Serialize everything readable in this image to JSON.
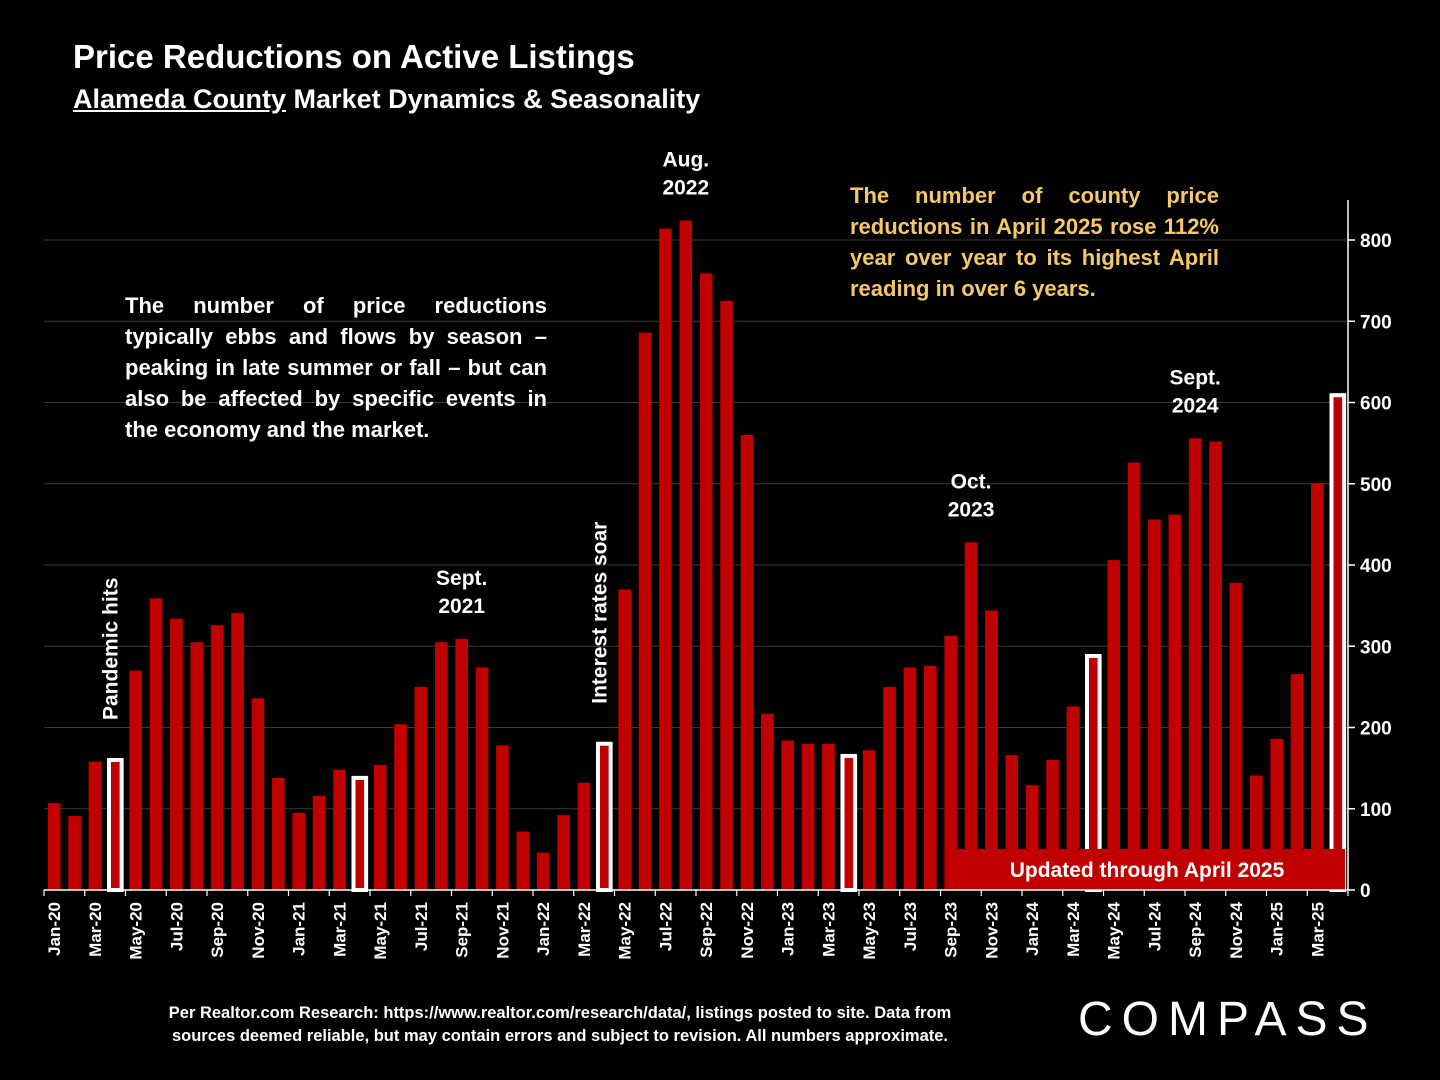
{
  "title": "Price Reductions on Active Listings",
  "subtitle_county": "Alameda County",
  "subtitle_rest": " Market Dynamics & Seasonality",
  "annotation_left": "The number of price reductions typically ebbs and flows by season – peaking in late summer or fall – but can also be affected by specific events in the economy and the market.",
  "annotation_right": "The number of county price reductions in April 2025 rose 112% year over year to its highest April reading in over 6 years.",
  "footer_line1": "Per Realtor.com Research:  https://www.realtor.com/research/data/, listings posted to site. Data from",
  "footer_line2": "sources deemed reliable, but may contain errors and subject to revision. All numbers approximate.",
  "logo": "COMPASS",
  "colors": {
    "bar": "#c00000",
    "highlight": "#ffffff",
    "banner": "#c00000",
    "annotation_right": "#f5c86b"
  },
  "chart_data": {
    "type": "bar",
    "ylim": [
      0,
      850
    ],
    "yticks": [
      0,
      100,
      200,
      300,
      400,
      500,
      600,
      700,
      800
    ],
    "y_axis_side": "right",
    "grid": true,
    "categories": [
      "Jan-20",
      "Feb-20",
      "Mar-20",
      "Apr-20",
      "May-20",
      "Jun-20",
      "Jul-20",
      "Aug-20",
      "Sep-20",
      "Oct-20",
      "Nov-20",
      "Dec-20",
      "Jan-21",
      "Feb-21",
      "Mar-21",
      "Apr-21",
      "May-21",
      "Jun-21",
      "Jul-21",
      "Aug-21",
      "Sep-21",
      "Oct-21",
      "Nov-21",
      "Dec-21",
      "Jan-22",
      "Feb-22",
      "Mar-22",
      "Apr-22",
      "May-22",
      "Jun-22",
      "Jul-22",
      "Aug-22",
      "Sep-22",
      "Oct-22",
      "Nov-22",
      "Dec-22",
      "Jan-23",
      "Feb-23",
      "Mar-23",
      "Apr-23",
      "May-23",
      "Jun-23",
      "Jul-23",
      "Aug-23",
      "Sep-23",
      "Oct-23",
      "Nov-23",
      "Dec-23",
      "Jan-24",
      "Feb-24",
      "Mar-24",
      "Apr-24",
      "May-24",
      "Jun-24",
      "Jul-24",
      "Aug-24",
      "Sep-24",
      "Oct-24",
      "Nov-24",
      "Dec-24",
      "Jan-25",
      "Feb-25",
      "Mar-25",
      "Apr-25"
    ],
    "tick_labels": [
      "Jan-20",
      "Mar-20",
      "May-20",
      "Jul-20",
      "Sep-20",
      "Nov-20",
      "Jan-21",
      "Mar-21",
      "May-21",
      "Jul-21",
      "Sep-21",
      "Nov-21",
      "Jan-22",
      "Mar-22",
      "May-22",
      "Jul-22",
      "Sep-22",
      "Nov-22",
      "Jan-23",
      "Mar-23",
      "May-23",
      "Jul-23",
      "Sep-23",
      "Nov-23",
      "Jan-24",
      "Mar-24",
      "May-24",
      "Jul-24",
      "Sep-24",
      "Nov-24",
      "Jan-25",
      "Mar-25"
    ],
    "tick_label_indices": [
      0,
      2,
      4,
      6,
      8,
      10,
      12,
      14,
      16,
      18,
      20,
      22,
      24,
      26,
      28,
      30,
      32,
      34,
      36,
      38,
      40,
      42,
      44,
      46,
      48,
      50,
      52,
      54,
      56,
      58,
      60,
      62
    ],
    "values": [
      107,
      91,
      158,
      160,
      270,
      359,
      334,
      305,
      326,
      341,
      236,
      138,
      95,
      116,
      148,
      138,
      154,
      204,
      250,
      305,
      309,
      274,
      178,
      72,
      46,
      92,
      132,
      180,
      370,
      686,
      814,
      824,
      759,
      725,
      560,
      217,
      184,
      180,
      180,
      165,
      172,
      250,
      274,
      276,
      313,
      428,
      344,
      166,
      129,
      160,
      226,
      288,
      406,
      526,
      456,
      462,
      556,
      552,
      378,
      141,
      186,
      266,
      501,
      609
    ],
    "highlighted_indices": [
      3,
      15,
      27,
      39,
      51,
      63
    ],
    "annotations": [
      {
        "index": 3,
        "text": "Pandemic hits",
        "rotated": true
      },
      {
        "index": 27,
        "text": "Interest rates soar",
        "rotated": true
      },
      {
        "index": 20,
        "lines": [
          "Sept.",
          "2021"
        ]
      },
      {
        "index": 31,
        "lines": [
          "Aug.",
          "2022"
        ]
      },
      {
        "index": 45,
        "lines": [
          "Oct.",
          "2023"
        ]
      },
      {
        "index": 56,
        "lines": [
          "Sept.",
          "2024"
        ]
      }
    ],
    "banner": "Updated through April 2025"
  }
}
